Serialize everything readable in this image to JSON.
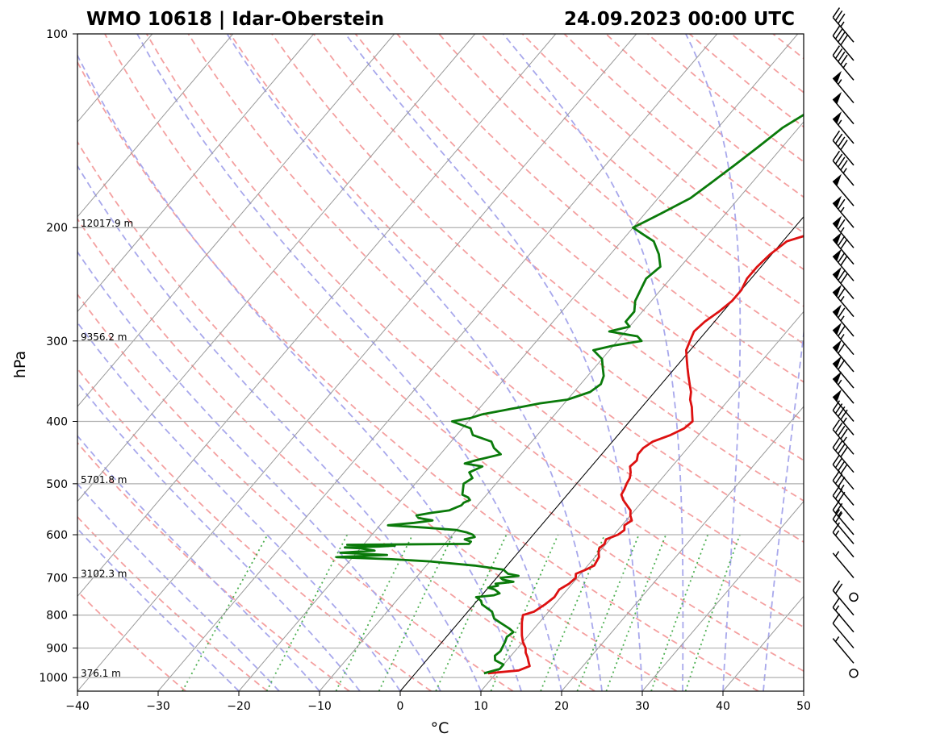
{
  "header": {
    "title_left": "WMO 10618 | Idar-Oberstein",
    "title_right": "24.09.2023 00:00 UTC"
  },
  "chart_data": {
    "type": "line",
    "xlabel": "°C",
    "ylabel": "hPa",
    "xlim": [
      -40,
      50
    ],
    "ylim": [
      1050,
      100
    ],
    "y_scale": "log",
    "x_ticks": [
      -40,
      -30,
      -20,
      -10,
      0,
      10,
      20,
      30,
      40,
      50
    ],
    "x_tick_labels": [
      "−40",
      "−30",
      "−20",
      "−10",
      "0",
      "10",
      "20",
      "30",
      "40",
      "50"
    ],
    "y_ticks": [
      100,
      200,
      300,
      400,
      500,
      600,
      700,
      800,
      900,
      1000
    ],
    "grid": true,
    "height_labels": [
      {
        "p": 200,
        "label": "12017.9 m"
      },
      {
        "p": 300,
        "label": "9356.2 m"
      },
      {
        "p": 500,
        "label": "5701.8 m"
      },
      {
        "p": 700,
        "label": "3102.3 m"
      },
      {
        "p": 1000,
        "label": "376.1 m"
      }
    ],
    "colors": {
      "temperature": "#dd1111",
      "dewpoint": "#0a7a0a",
      "dry_adiabat": "#f4a0a0",
      "moist_adiabat": "#a8a8ec",
      "mixing_ratio": "#4caf50",
      "isotherm": "#999999"
    },
    "series": [
      {
        "p": [
          985,
          975,
          960,
          945,
          930,
          915,
          900,
          880,
          860,
          840,
          820,
          800,
          790,
          770,
          750,
          730,
          715,
          700,
          690,
          680,
          670,
          650,
          640,
          630,
          620,
          610,
          600,
          590,
          580,
          570,
          560,
          550,
          540,
          530,
          520,
          510,
          500,
          490,
          480,
          470,
          460,
          450,
          440,
          430,
          420,
          410,
          400,
          390,
          380,
          370,
          360,
          350,
          340,
          330,
          320,
          310,
          300,
          290,
          280,
          270,
          260,
          250,
          240,
          230,
          220,
          210,
          205,
          200,
          195,
          190,
          185,
          180,
          175,
          170,
          165,
          160,
          155,
          150,
          145,
          140,
          135,
          130,
          125,
          120,
          115,
          110,
          105,
          100
        ],
        "t": [
          9.0,
          12.5,
          13.4,
          12.8,
          12.2,
          11.5,
          11.0,
          10.0,
          9.2,
          8.5,
          7.8,
          7.2,
          8.2,
          8.8,
          9.2,
          9.0,
          9.6,
          9.8,
          9.4,
          10.2,
          10.8,
          10.5,
          10.0,
          9.6,
          9.8,
          9.5,
          10.5,
          10.8,
          10.3,
          10.7,
          10.0,
          9.5,
          8.5,
          7.5,
          6.7,
          6.5,
          6.2,
          6.0,
          5.5,
          4.8,
          5.0,
          4.5,
          4.5,
          5.0,
          6.5,
          7.5,
          7.8,
          7.0,
          6.2,
          5.2,
          4.5,
          3.5,
          2.5,
          1.5,
          0.5,
          -0.5,
          -1.0,
          -1.5,
          -1.2,
          -0.5,
          0.0,
          0.0,
          -0.5,
          -0.5,
          -0.2,
          0.5,
          2.5,
          4.0,
          5.5,
          6.5,
          6.0,
          5.0,
          4.0,
          4.5,
          5.0,
          5.5,
          6.0,
          7.0,
          8.0,
          9.5,
          11.0,
          14.0,
          13.5,
          13.0,
          15.0,
          15.8,
          17.0,
          18.5
        ],
        "name": ""
      },
      {
        "p": [
          985,
          970,
          955,
          940,
          925,
          910,
          895,
          880,
          865,
          850,
          840,
          830,
          820,
          810,
          800,
          790,
          780,
          770,
          760,
          755,
          750,
          745,
          740,
          730,
          725,
          720,
          715,
          710,
          705,
          700,
          695,
          690,
          685,
          680,
          670,
          660,
          655,
          650,
          645,
          640,
          635,
          630,
          628,
          626,
          624,
          622,
          620,
          615,
          610,
          605,
          600,
          595,
          590,
          585,
          580,
          575,
          570,
          565,
          560,
          555,
          550,
          545,
          540,
          535,
          530,
          525,
          520,
          510,
          500,
          490,
          480,
          470,
          465,
          460,
          450,
          440,
          430,
          420,
          410,
          400,
          395,
          390,
          385,
          380,
          375,
          370,
          360,
          350,
          340,
          330,
          320,
          310,
          305,
          300,
          295,
          290,
          285,
          280,
          270,
          260,
          250,
          240,
          230,
          220,
          210,
          205,
          200,
          195,
          190,
          180,
          170,
          160,
          150,
          140,
          130,
          120,
          110,
          105,
          100
        ],
        "t": [
          8.5,
          10.0,
          10.0,
          8.5,
          8.0,
          8.2,
          8.0,
          7.8,
          7.5,
          7.8,
          7.0,
          6.0,
          5.0,
          4.0,
          3.5,
          3.0,
          2.0,
          1.0,
          0.5,
          0.0,
          -0.5,
          1.5,
          2.0,
          1.0,
          0.0,
          1.0,
          0.5,
          2.5,
          1.0,
          0.5,
          2.5,
          1.0,
          0.5,
          0.0,
          -4.0,
          -10.0,
          -15.0,
          -22.0,
          -16.0,
          -22.0,
          -18.0,
          -20.0,
          -22.0,
          -18.0,
          -16.0,
          -22.0,
          -7.0,
          -7.0,
          -8.0,
          -7.0,
          -7.5,
          -8.5,
          -10.0,
          -14.0,
          -19.0,
          -16.0,
          -14.0,
          -16.0,
          -16.5,
          -15.0,
          -13.0,
          -12.5,
          -12.0,
          -12.0,
          -11.5,
          -12.0,
          -13.0,
          -13.5,
          -14.0,
          -13.5,
          -14.5,
          -13.5,
          -16.0,
          -15.0,
          -12.5,
          -14.0,
          -15.0,
          -18.0,
          -19.0,
          -22.0,
          -20.0,
          -19.0,
          -17.0,
          -15.0,
          -13.0,
          -10.0,
          -8.0,
          -7.5,
          -8.0,
          -9.0,
          -10.0,
          -12.0,
          -10.0,
          -7.0,
          -8.0,
          -12.0,
          -10.0,
          -11.0,
          -11.0,
          -12.0,
          -12.5,
          -13.0,
          -12.5,
          -14.0,
          -16.0,
          -18.0,
          -20.0,
          -19.0,
          -18.0,
          -16.0,
          -15.0,
          -14.0,
          -13.0,
          -12.0,
          -10.0,
          -9.0,
          -7.0,
          -6.0,
          -5.0
        ],
        "name": ""
      }
    ],
    "wind_barbs": [
      {
        "p": 985,
        "speed_kt": 0
      },
      {
        "p": 950,
        "speed_kt": 5
      },
      {
        "p": 900,
        "speed_kt": 10
      },
      {
        "p": 850,
        "speed_kt": 15
      },
      {
        "p": 800,
        "speed_kt": 20
      },
      {
        "p": 750,
        "speed_kt": 0
      },
      {
        "p": 700,
        "speed_kt": 5
      },
      {
        "p": 650,
        "speed_kt": 15
      },
      {
        "p": 620,
        "speed_kt": 20
      },
      {
        "p": 600,
        "speed_kt": 25
      },
      {
        "p": 570,
        "speed_kt": 30
      },
      {
        "p": 540,
        "speed_kt": 35
      },
      {
        "p": 510,
        "speed_kt": 40
      },
      {
        "p": 480,
        "speed_kt": 40
      },
      {
        "p": 450,
        "speed_kt": 45
      },
      {
        "p": 420,
        "speed_kt": 45
      },
      {
        "p": 400,
        "speed_kt": 50
      },
      {
        "p": 375,
        "speed_kt": 55
      },
      {
        "p": 355,
        "speed_kt": 60
      },
      {
        "p": 335,
        "speed_kt": 60
      },
      {
        "p": 315,
        "speed_kt": 65
      },
      {
        "p": 295,
        "speed_kt": 65
      },
      {
        "p": 275,
        "speed_kt": 65
      },
      {
        "p": 258,
        "speed_kt": 70
      },
      {
        "p": 242,
        "speed_kt": 70
      },
      {
        "p": 228,
        "speed_kt": 70
      },
      {
        "p": 215,
        "speed_kt": 65
      },
      {
        "p": 200,
        "speed_kt": 65
      },
      {
        "p": 185,
        "speed_kt": 50
      },
      {
        "p": 172,
        "speed_kt": 45
      },
      {
        "p": 160,
        "speed_kt": 40
      },
      {
        "p": 148,
        "speed_kt": 55
      },
      {
        "p": 138,
        "speed_kt": 50
      },
      {
        "p": 128,
        "speed_kt": 55
      },
      {
        "p": 118,
        "speed_kt": 45
      },
      {
        "p": 110,
        "speed_kt": 40
      },
      {
        "p": 103,
        "speed_kt": 35
      }
    ]
  }
}
